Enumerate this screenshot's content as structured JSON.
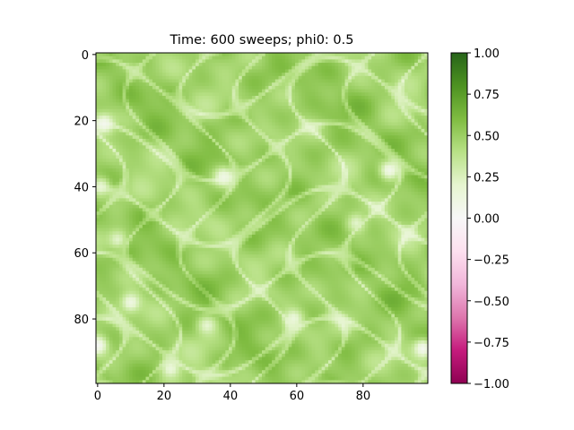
{
  "chart_data": {
    "type": "heatmap",
    "title": "Time: 600 sweeps; phi0: 0.5",
    "xlabel": "",
    "ylabel": "",
    "grid": false,
    "grid_size": 100,
    "x_ticks": [
      "0",
      "20",
      "40",
      "60",
      "80"
    ],
    "y_ticks": [
      "0",
      "20",
      "40",
      "60",
      "80"
    ],
    "x_tick_values": [
      0,
      20,
      40,
      60,
      80
    ],
    "y_tick_values": [
      0,
      20,
      40,
      60,
      80
    ],
    "xlim": [
      -0.5,
      99.5
    ],
    "ylim": [
      99.5,
      -0.5
    ],
    "colormap": "PiYG",
    "vmin": -1.0,
    "vmax": 1.0,
    "colorbar_ticks": [
      "1.00",
      "0.75",
      "0.50",
      "0.25",
      "0.00",
      "−0.25",
      "−0.50",
      "−0.75",
      "−1.00"
    ],
    "colorbar_tick_values": [
      1.0,
      0.75,
      0.5,
      0.25,
      0.0,
      -0.25,
      -0.5,
      -0.75,
      -1.0
    ],
    "field_base_value": 0.5,
    "field_summary": "order parameter field phi mostly around 0.45-0.6 with lighter interfacial domains near 0.2-0.35 and a few near-zero spots",
    "light_spots": [
      {
        "x": 2,
        "y": 21,
        "value": 0.05
      },
      {
        "x": 1,
        "y": 40,
        "value": 0.18
      },
      {
        "x": 0,
        "y": 88,
        "value": 0.02
      },
      {
        "x": 38,
        "y": 37,
        "value": 0.1
      },
      {
        "x": 88,
        "y": 35,
        "value": 0.08
      },
      {
        "x": 10,
        "y": 75,
        "value": 0.12
      },
      {
        "x": 59,
        "y": 80,
        "value": 0.15
      },
      {
        "x": 98,
        "y": 89,
        "value": 0.05
      },
      {
        "x": 22,
        "y": 95,
        "value": 0.15
      },
      {
        "x": 6,
        "y": 56,
        "value": 0.22
      },
      {
        "x": 33,
        "y": 82,
        "value": 0.2
      },
      {
        "x": 78,
        "y": 51,
        "value": 0.22
      }
    ]
  }
}
